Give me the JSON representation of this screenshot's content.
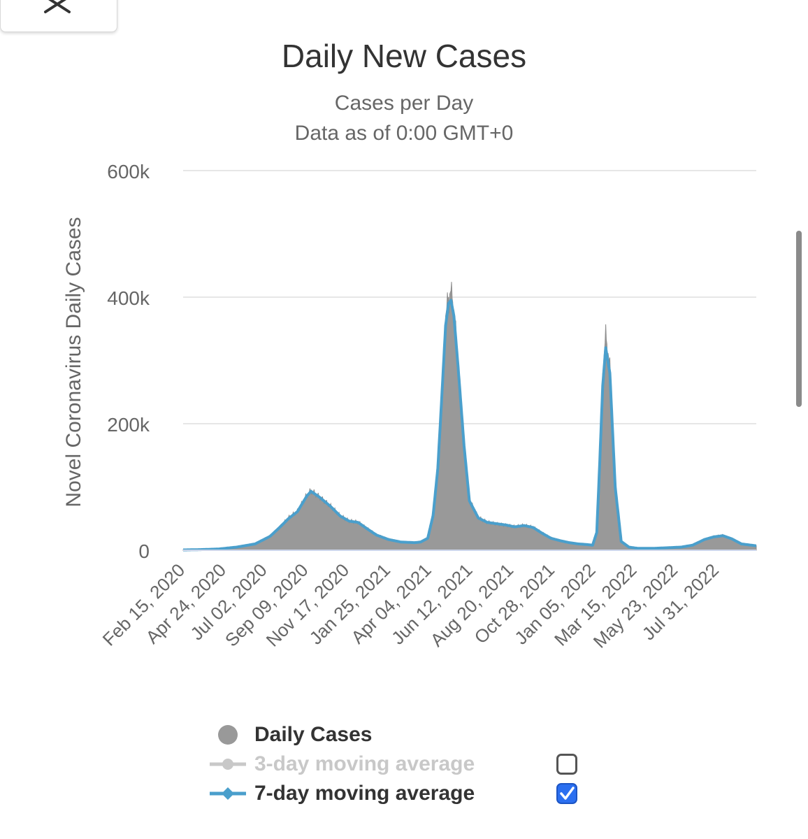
{
  "chart_data": {
    "type": "area",
    "title": "Daily New Cases",
    "subtitle": [
      "Cases per Day",
      "Data as of 0:00 GMT+0"
    ],
    "ylabel": "Novel Coronavirus Daily Cases",
    "xlabel": "",
    "ylim": [
      0,
      600000
    ],
    "y_ticks": [
      {
        "value": 0,
        "label": "0"
      },
      {
        "value": 200000,
        "label": "200k"
      },
      {
        "value": 400000,
        "label": "400k"
      },
      {
        "value": 600000,
        "label": "600k"
      }
    ],
    "x_range": [
      "2020-02-15",
      "2022-10-05"
    ],
    "x_ticks": [
      {
        "date": "2020-02-15",
        "label": "Feb 15, 2020"
      },
      {
        "date": "2020-04-24",
        "label": "Apr 24, 2020"
      },
      {
        "date": "2020-07-02",
        "label": "Jul 02, 2020"
      },
      {
        "date": "2020-09-09",
        "label": "Sep 09, 2020"
      },
      {
        "date": "2020-11-17",
        "label": "Nov 17, 2020"
      },
      {
        "date": "2021-01-25",
        "label": "Jan 25, 2021"
      },
      {
        "date": "2021-04-04",
        "label": "Apr 04, 2021"
      },
      {
        "date": "2021-06-12",
        "label": "Jun 12, 2021"
      },
      {
        "date": "2021-08-20",
        "label": "Aug 20, 2021"
      },
      {
        "date": "2021-10-28",
        "label": "Oct 28, 2021"
      },
      {
        "date": "2022-01-05",
        "label": "Jan 05, 2022"
      },
      {
        "date": "2022-03-15",
        "label": "Mar 15, 2022"
      },
      {
        "date": "2022-05-23",
        "label": "May 23, 2022"
      },
      {
        "date": "2022-07-31",
        "label": "Jul 31, 2022"
      }
    ],
    "grid": true,
    "legend_position": "bottom",
    "series": [
      {
        "name": "Daily Cases",
        "kind": "area",
        "color": "#999999",
        "visible": true,
        "x": [
          "2020-02-15",
          "2020-03-15",
          "2020-04-15",
          "2020-05-15",
          "2020-06-15",
          "2020-07-10",
          "2020-07-25",
          "2020-08-10",
          "2020-08-25",
          "2020-09-10",
          "2020-09-17",
          "2020-10-01",
          "2020-10-20",
          "2020-11-05",
          "2020-11-20",
          "2020-12-05",
          "2020-12-20",
          "2021-01-05",
          "2021-01-25",
          "2021-02-15",
          "2021-03-10",
          "2021-03-20",
          "2021-04-01",
          "2021-04-10",
          "2021-04-18",
          "2021-04-25",
          "2021-05-01",
          "2021-05-06",
          "2021-05-10",
          "2021-05-15",
          "2021-05-22",
          "2021-06-01",
          "2021-06-10",
          "2021-06-25",
          "2021-07-10",
          "2021-07-25",
          "2021-08-10",
          "2021-08-25",
          "2021-09-10",
          "2021-09-25",
          "2021-10-10",
          "2021-10-25",
          "2021-11-10",
          "2021-11-25",
          "2021-12-10",
          "2021-12-25",
          "2022-01-03",
          "2022-01-10",
          "2022-01-15",
          "2022-01-20",
          "2022-01-25",
          "2022-02-01",
          "2022-02-10",
          "2022-02-20",
          "2022-03-05",
          "2022-03-20",
          "2022-04-15",
          "2022-05-10",
          "2022-06-01",
          "2022-06-20",
          "2022-07-10",
          "2022-07-25",
          "2022-08-10",
          "2022-08-25",
          "2022-09-10",
          "2022-10-05"
        ],
        "values": [
          500,
          1000,
          2000,
          5000,
          10000,
          22000,
          35000,
          52000,
          62000,
          88000,
          95000,
          85000,
          70000,
          55000,
          47000,
          45000,
          35000,
          25000,
          18000,
          13000,
          12000,
          13000,
          20000,
          60000,
          140000,
          260000,
          370000,
          400000,
          410000,
          380000,
          300000,
          170000,
          80000,
          52000,
          45000,
          42000,
          40000,
          38000,
          40000,
          37000,
          28000,
          20000,
          15000,
          12000,
          10000,
          9000,
          8000,
          30000,
          150000,
          280000,
          340000,
          290000,
          110000,
          15000,
          5000,
          3000,
          3000,
          4000,
          5000,
          8000,
          17000,
          22000,
          24000,
          18000,
          10000,
          7000
        ]
      },
      {
        "name": "3-day moving average",
        "kind": "line",
        "color": "#c8c8c8",
        "visible": false
      },
      {
        "name": "7-day moving average",
        "kind": "line",
        "color": "#4a9fcc",
        "visible": true,
        "x": [
          "2020-02-15",
          "2020-03-15",
          "2020-04-15",
          "2020-05-15",
          "2020-06-15",
          "2020-07-10",
          "2020-07-25",
          "2020-08-10",
          "2020-08-25",
          "2020-09-10",
          "2020-09-17",
          "2020-10-01",
          "2020-10-20",
          "2020-11-05",
          "2020-11-20",
          "2020-12-05",
          "2020-12-20",
          "2021-01-05",
          "2021-01-25",
          "2021-02-15",
          "2021-03-10",
          "2021-03-20",
          "2021-04-01",
          "2021-04-10",
          "2021-04-18",
          "2021-04-25",
          "2021-05-01",
          "2021-05-06",
          "2021-05-10",
          "2021-05-15",
          "2021-05-22",
          "2021-06-01",
          "2021-06-10",
          "2021-06-25",
          "2021-07-10",
          "2021-07-25",
          "2021-08-10",
          "2021-08-25",
          "2021-09-10",
          "2021-09-25",
          "2021-10-10",
          "2021-10-25",
          "2021-11-10",
          "2021-11-25",
          "2021-12-10",
          "2021-12-25",
          "2022-01-03",
          "2022-01-10",
          "2022-01-15",
          "2022-01-20",
          "2022-01-25",
          "2022-02-01",
          "2022-02-10",
          "2022-02-20",
          "2022-03-05",
          "2022-03-20",
          "2022-04-15",
          "2022-05-10",
          "2022-06-01",
          "2022-06-20",
          "2022-07-10",
          "2022-07-25",
          "2022-08-10",
          "2022-08-25",
          "2022-09-10",
          "2022-10-05"
        ],
        "values": [
          500,
          1000,
          2000,
          5000,
          10000,
          22000,
          35000,
          50000,
          61000,
          86000,
          93000,
          84000,
          69000,
          54000,
          46000,
          44000,
          34000,
          24000,
          17000,
          13000,
          12000,
          13000,
          19000,
          55000,
          130000,
          250000,
          355000,
          390000,
          395000,
          370000,
          290000,
          165000,
          78000,
          51000,
          44000,
          42000,
          40000,
          37000,
          39000,
          36000,
          27000,
          19000,
          15000,
          12000,
          10000,
          9000,
          8000,
          28000,
          140000,
          260000,
          320000,
          280000,
          100000,
          14000,
          5000,
          3000,
          3000,
          4000,
          5000,
          8000,
          17000,
          21000,
          23000,
          18000,
          10000,
          7000
        ]
      }
    ]
  },
  "legend": {
    "items": [
      {
        "label": "Daily Cases",
        "state": "on"
      },
      {
        "label": "3-day moving average",
        "state": "off"
      },
      {
        "label": "7-day moving average",
        "state": "on"
      }
    ],
    "checkboxes": {
      "three_day": false,
      "seven_day": true
    }
  }
}
